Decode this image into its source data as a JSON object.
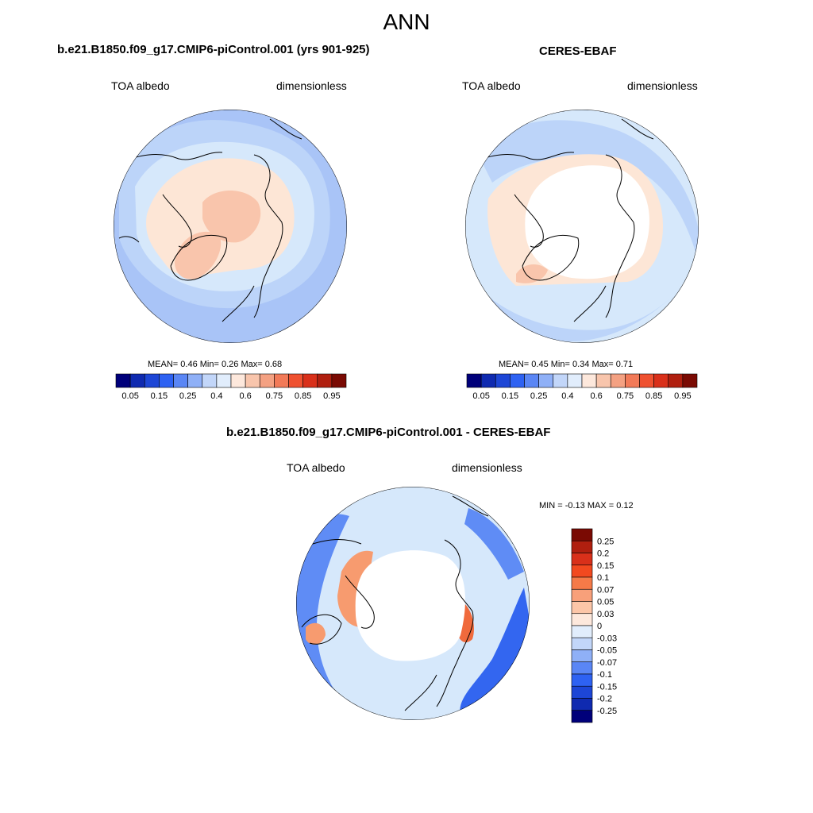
{
  "figure": {
    "title": "ANN"
  },
  "panels": [
    {
      "title": "b.e21.B1850.f09_g17.CMIP6-piControl.001 (yrs 901-925)",
      "variable": "TOA albedo",
      "units": "dimensionless",
      "stats": {
        "mean_label": "MEAN=",
        "mean": "0.46",
        "min_label": "Min=",
        "min": "0.26",
        "max_label": "Max=",
        "max": "0.68"
      }
    },
    {
      "title": "CERES-EBAF",
      "variable": "TOA albedo",
      "units": "dimensionless",
      "stats": {
        "mean_label": "MEAN=",
        "mean": "0.45",
        "min_label": "Min=",
        "min": "0.34",
        "max_label": "Max=",
        "max": "0.71"
      }
    },
    {
      "title": "b.e21.B1850.f09_g17.CMIP6-piControl.001 - CERES-EBAF",
      "variable": "TOA albedo",
      "units": "dimensionless",
      "stats": {
        "min_label": "MIN =",
        "min": "-0.13",
        "max_label": "MAX =",
        "max": "0.12"
      }
    }
  ],
  "colorbars": {
    "main": {
      "colors": [
        "#00007a",
        "#0f2ab0",
        "#1d46d6",
        "#2e62f2",
        "#5a86f5",
        "#8fb0f7",
        "#c2d6f9",
        "#e1edfc",
        "#fde8dc",
        "#f8c5ac",
        "#f4a182",
        "#f27a58",
        "#ef5130",
        "#d9301a",
        "#b01f0f",
        "#7a0a03"
      ],
      "tick_labels": [
        "0.05",
        "0.15",
        "0.25",
        "0.4",
        "0.6",
        "0.75",
        "0.85",
        "0.95"
      ]
    },
    "diff": {
      "colors": [
        "#7a0a03",
        "#b01f0f",
        "#d9301a",
        "#f2491f",
        "#f57a48",
        "#f8a07a",
        "#fcc6a8",
        "#fde8dc",
        "#e1edfc",
        "#c2d6f9",
        "#8fb0f7",
        "#5a86f5",
        "#2e62f2",
        "#1d46d6",
        "#0f2ab0",
        "#00007a"
      ],
      "tick_labels": [
        "0.25",
        "0.2",
        "0.15",
        "0.1",
        "0.07",
        "0.05",
        "0.03",
        "0",
        "-0.03",
        "-0.05",
        "-0.07",
        "-0.1",
        "-0.15",
        "-0.2",
        "-0.25"
      ]
    }
  },
  "map_colors": {
    "ocean_light": "#d6e8fb",
    "ocean_mid": "#bcd4f9",
    "ocean_dark": "#a9c4f7",
    "land_pale": "#fde6d6",
    "land_mid": "#f9c5ac",
    "diff_blue_dark": "#3366f0",
    "diff_blue": "#5f8cf5",
    "diff_red": "#f06a3c",
    "diff_orange": "#f79b6f",
    "masked": "#ffffff"
  }
}
